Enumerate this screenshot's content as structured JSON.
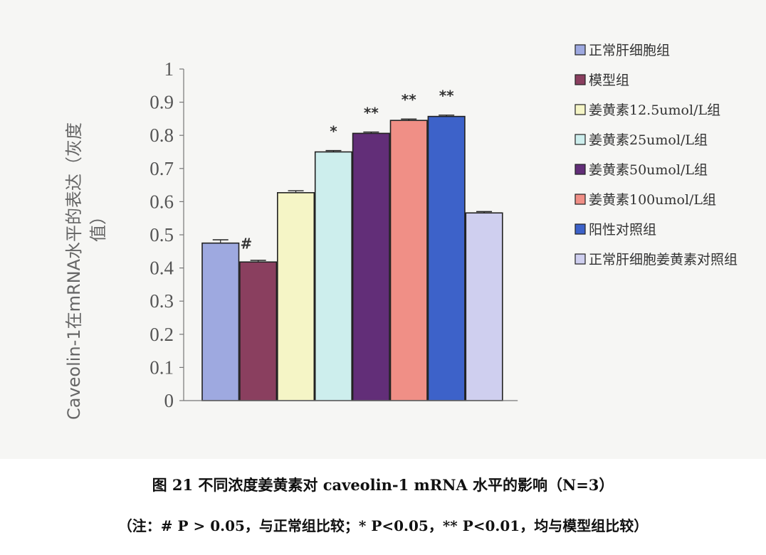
{
  "chart_data": {
    "type": "bar",
    "categories": [
      "正常肝细胞组",
      "模型组",
      "姜黄素12.5umol/L组",
      "姜黄素25umol/L组",
      "姜黄素50umol/L组",
      "姜黄素100umol/L组",
      "阳性对照组",
      "正常肝细胞姜黄素对照组"
    ],
    "values": [
      0.475,
      0.418,
      0.627,
      0.75,
      0.806,
      0.845,
      0.857,
      0.566
    ],
    "errors": [
      0.01,
      0.005,
      0.006,
      0.004,
      0.004,
      0.004,
      0.004,
      0.004
    ],
    "significance": [
      "#",
      "",
      "",
      "*",
      "**",
      "**",
      "**",
      ""
    ],
    "colors": [
      "#9ea9e0",
      "#8a3f5f",
      "#f5f5c6",
      "#cdeeed",
      "#622e78",
      "#f08f86",
      "#3d62c9",
      "#cfcfef"
    ],
    "ylabel": "Caveolin-1在mRNA水平的表达（灰度值）",
    "ylabel_line1": "Caveolin-1在mRNA水平的表达（灰度",
    "ylabel_line2": "值）",
    "ylim": [
      0,
      1
    ],
    "yticks": [
      "0",
      "0.1",
      "0.2",
      "0.3",
      "0.4",
      "0.5",
      "0.6",
      "0.7",
      "0.8",
      "0.9",
      "1"
    ],
    "legend_position": "right"
  },
  "caption": "图 21  不同浓度姜黄素对 caveolin-1 mRNA 水平的影响（N=3）",
  "note": "（注：# P > 0.05，与正常组比较；* P<0.05，** P<0.01，均与模型组比较）"
}
